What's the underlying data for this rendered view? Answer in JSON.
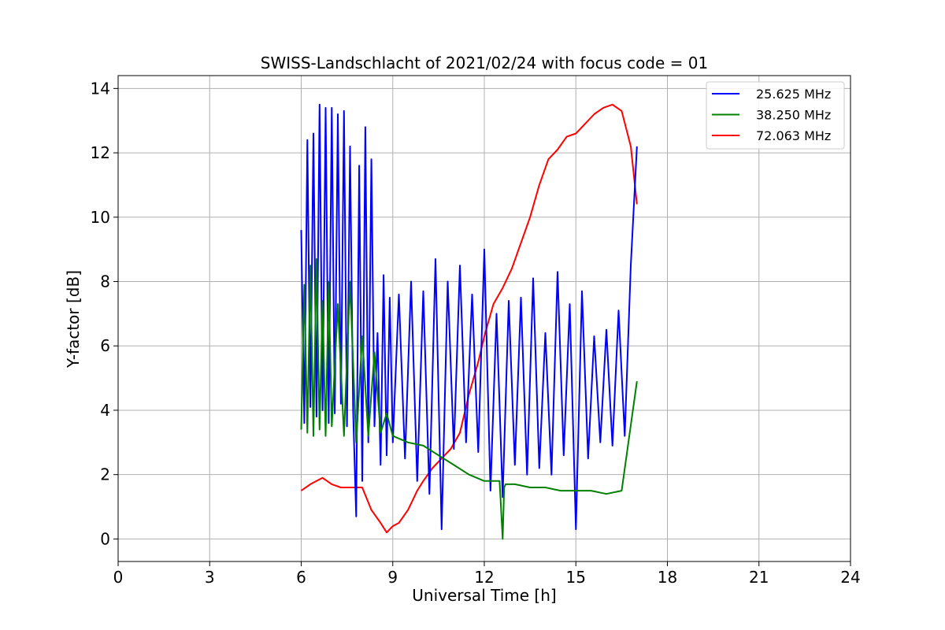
{
  "chart_data": {
    "type": "line",
    "title": "SWISS-Landschlacht of 2021/02/24 with focus code = 01",
    "xlabel": "Universal Time [h]",
    "ylabel": "Y-factor [dB]",
    "xlim": [
      0,
      24
    ],
    "ylim": [
      -0.7,
      14.4
    ],
    "xticks": [
      0,
      3,
      6,
      9,
      12,
      15,
      18,
      21,
      24
    ],
    "yticks": [
      0,
      2,
      4,
      6,
      8,
      10,
      12,
      14
    ],
    "grid": true,
    "legend_position": "top-right",
    "series": [
      {
        "name": "25.625 MHz",
        "color": "#0000ff",
        "x": [
          6.0,
          6.1,
          6.2,
          6.3,
          6.4,
          6.5,
          6.6,
          6.7,
          6.8,
          6.9,
          7.0,
          7.1,
          7.2,
          7.3,
          7.4,
          7.5,
          7.6,
          7.7,
          7.8,
          7.9,
          8.0,
          8.1,
          8.2,
          8.3,
          8.4,
          8.5,
          8.6,
          8.7,
          8.8,
          8.9,
          9.0,
          9.2,
          9.4,
          9.6,
          9.8,
          10.0,
          10.2,
          10.4,
          10.6,
          10.8,
          11.0,
          11.2,
          11.4,
          11.6,
          11.8,
          12.0,
          12.2,
          12.4,
          12.6,
          12.8,
          13.0,
          13.2,
          13.4,
          13.6,
          13.8,
          14.0,
          14.2,
          14.4,
          14.6,
          14.8,
          15.0,
          15.2,
          15.4,
          15.6,
          15.8,
          16.0,
          16.2,
          16.4,
          16.6,
          16.8,
          17.0
        ],
        "y": [
          9.6,
          3.6,
          12.4,
          4.1,
          12.6,
          3.8,
          13.5,
          4.0,
          13.4,
          3.6,
          13.4,
          3.9,
          13.2,
          4.2,
          13.3,
          3.5,
          12.2,
          4.0,
          0.7,
          11.6,
          1.8,
          12.8,
          3.0,
          11.8,
          3.5,
          6.4,
          2.3,
          8.2,
          2.6,
          7.5,
          3.0,
          7.6,
          2.5,
          8.0,
          1.8,
          7.7,
          1.4,
          8.7,
          0.3,
          8.0,
          2.8,
          8.5,
          3.0,
          7.6,
          2.7,
          9.0,
          1.5,
          7.0,
          1.3,
          7.4,
          2.3,
          7.5,
          2.0,
          8.1,
          2.2,
          6.4,
          2.0,
          8.3,
          2.6,
          7.3,
          0.3,
          7.7,
          2.5,
          6.3,
          3.0,
          6.5,
          2.9,
          7.1,
          3.2,
          8.5,
          12.2
        ]
      },
      {
        "name": "38.250 MHz",
        "color": "#008000",
        "x": [
          6.0,
          6.1,
          6.2,
          6.3,
          6.4,
          6.5,
          6.6,
          6.7,
          6.8,
          6.9,
          7.0,
          7.2,
          7.4,
          7.6,
          7.8,
          8.0,
          8.2,
          8.4,
          8.6,
          8.8,
          9.0,
          9.5,
          10.0,
          10.5,
          11.0,
          11.5,
          12.0,
          12.5,
          12.6,
          12.65,
          12.7,
          13.0,
          13.5,
          14.0,
          14.5,
          15.0,
          15.5,
          16.0,
          16.5,
          17.0
        ],
        "y": [
          3.4,
          7.9,
          3.3,
          8.5,
          3.2,
          8.7,
          3.4,
          7.4,
          3.2,
          8.0,
          3.5,
          7.3,
          3.2,
          8.0,
          3.0,
          6.3,
          3.2,
          5.8,
          3.3,
          3.9,
          3.2,
          3.0,
          2.9,
          2.6,
          2.3,
          2.0,
          1.8,
          1.8,
          0.0,
          1.6,
          1.7,
          1.7,
          1.6,
          1.6,
          1.5,
          1.5,
          1.5,
          1.4,
          1.5,
          4.9
        ]
      },
      {
        "name": "72.063 MHz",
        "color": "#ff0000",
        "x": [
          6.0,
          6.3,
          6.5,
          6.7,
          7.0,
          7.3,
          7.6,
          8.0,
          8.3,
          8.6,
          8.8,
          9.0,
          9.2,
          9.5,
          9.8,
          10.0,
          10.3,
          10.6,
          10.9,
          11.2,
          11.5,
          11.8,
          12.0,
          12.3,
          12.6,
          12.9,
          13.2,
          13.5,
          13.8,
          14.1,
          14.4,
          14.7,
          15.0,
          15.3,
          15.6,
          15.9,
          16.2,
          16.5,
          16.8,
          17.0
        ],
        "y": [
          1.5,
          1.7,
          1.8,
          1.9,
          1.7,
          1.6,
          1.6,
          1.6,
          0.9,
          0.5,
          0.2,
          0.4,
          0.5,
          0.9,
          1.5,
          1.8,
          2.2,
          2.5,
          2.8,
          3.3,
          4.5,
          5.5,
          6.3,
          7.3,
          7.8,
          8.4,
          9.2,
          10.0,
          11.0,
          11.8,
          12.1,
          12.5,
          12.6,
          12.9,
          13.2,
          13.4,
          13.5,
          13.3,
          12.2,
          10.4
        ]
      }
    ]
  }
}
